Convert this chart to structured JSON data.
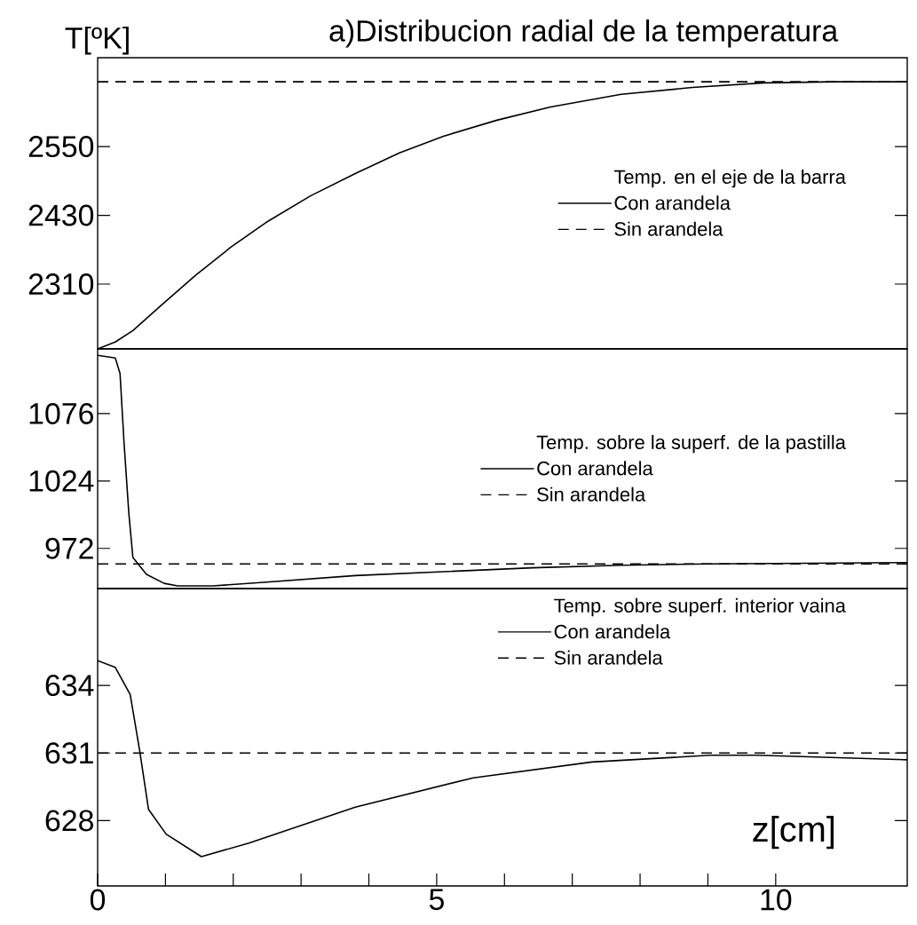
{
  "chart_data": [
    {
      "type": "line",
      "title": "a)Distribucion radial de la temperatura",
      "ylabel": "T[ºK]",
      "legend_title": "Temp. en el eje de la barra",
      "legend": "right",
      "tick_labels": "y",
      "xlim": [
        0,
        11.94
      ],
      "ylim": [
        2197,
        2705
      ],
      "yticks": [
        2310,
        2430,
        2550
      ],
      "series": [
        {
          "name": "Con arandela",
          "color": "#000000",
          "line_style": "solid",
          "x": [
            0,
            0.26,
            0.52,
            0.92,
            1.44,
            1.96,
            2.49,
            3.14,
            3.8,
            4.45,
            5.1,
            5.89,
            6.68,
            7.72,
            8.77,
            9.82,
            10.86,
            11.94
          ],
          "values": [
            2197,
            2209,
            2229,
            2271,
            2325,
            2374,
            2418,
            2464,
            2503,
            2539,
            2568,
            2596,
            2619,
            2641,
            2653,
            2661,
            2663,
            2663
          ]
        },
        {
          "name": "Sin arandela",
          "color": "#000000",
          "line_style": "dashed",
          "x": [
            0,
            11.94
          ],
          "values": [
            2663,
            2663
          ]
        }
      ]
    },
    {
      "type": "line",
      "legend_title": "Temp. sobre la superf. de la pastilla",
      "legend": "right",
      "tick_labels": "y",
      "xlim": [
        0,
        11.94
      ],
      "ylim": [
        941,
        1126
      ],
      "yticks": [
        972,
        1024,
        1076
      ],
      "series": [
        {
          "name": "Con arandela",
          "color": "#000000",
          "line_style": "solid",
          "x": [
            0,
            0.26,
            0.33,
            0.39,
            0.46,
            0.52,
            0.72,
            0.98,
            1.18,
            1.7,
            2.49,
            3.8,
            5.1,
            6.41,
            7.72,
            9.03,
            11.94
          ],
          "values": [
            1121,
            1119,
            1107,
            1053,
            999,
            965,
            952,
            945,
            943,
            943,
            946,
            951,
            954,
            957,
            959,
            960,
            961
          ]
        },
        {
          "name": "Sin arandela",
          "color": "#000000",
          "line_style": "dashed",
          "x": [
            0,
            11.94
          ],
          "values": [
            960,
            960
          ]
        }
      ]
    },
    {
      "type": "line",
      "xlabel": "z[cm]",
      "legend_title": "Temp. sobre superf. interior vaina",
      "legend": "top right",
      "xlim": [
        0,
        11.94
      ],
      "ylim": [
        625.1,
        638.3
      ],
      "yticks": [
        628,
        631,
        634
      ],
      "xticks": [
        0,
        {
          "value": 1,
          "label": null
        },
        {
          "value": 2,
          "label": null
        },
        {
          "value": 3,
          "label": null
        },
        {
          "value": 4,
          "label": null
        },
        5,
        {
          "value": 6,
          "label": null
        },
        {
          "value": 7,
          "label": null
        },
        {
          "value": 8,
          "label": null
        },
        {
          "value": 9,
          "label": null
        },
        10
      ],
      "series": [
        {
          "name": "Con arandela",
          "color": "#000000",
          "line_style": "solid",
          "x": [
            0,
            0.26,
            0.48,
            0.62,
            0.75,
            1.01,
            1.53,
            2.23,
            3.8,
            5.54,
            7.29,
            9.03,
            9.73,
            11.94
          ],
          "values": [
            635.1,
            634.8,
            633.6,
            631.1,
            628.5,
            627.4,
            626.4,
            627.0,
            628.6,
            629.9,
            630.6,
            630.9,
            630.9,
            630.7
          ]
        },
        {
          "name": "Sin arandela",
          "color": "#000000",
          "line_style": "dashed",
          "x": [
            0,
            11.94
          ],
          "values": [
            631,
            631
          ]
        }
      ]
    }
  ]
}
